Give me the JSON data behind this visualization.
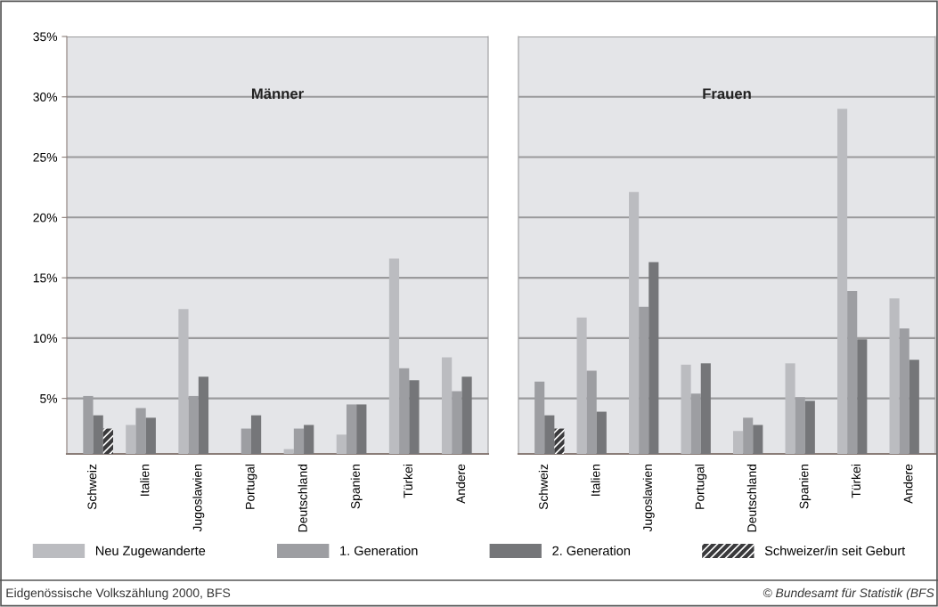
{
  "chart_data": [
    {
      "type": "bar",
      "title": "Männer",
      "categories": [
        "Schweiz",
        "Italien",
        "Jugoslawien",
        "Portugal",
        "Deutschland",
        "Spanien",
        "Türkei",
        "Andere"
      ],
      "series": [
        {
          "name": "Neu Zugewanderte",
          "color": "#bbbcc0",
          "values": [
            null,
            2.8,
            12.4,
            null,
            0.8,
            2.0,
            16.6,
            8.4
          ]
        },
        {
          "name": "1. Generation",
          "color": "#9d9ea2",
          "values": [
            5.2,
            4.2,
            5.2,
            2.5,
            2.5,
            4.5,
            7.5,
            5.6
          ]
        },
        {
          "name": "2. Generation",
          "color": "#757679",
          "values": [
            3.6,
            3.4,
            6.8,
            3.6,
            2.8,
            4.5,
            6.5,
            6.8
          ]
        },
        {
          "name": "Schweizer/in seit Geburt",
          "color": "#3a3a3c",
          "values": [
            2.5,
            null,
            null,
            null,
            null,
            null,
            null,
            null
          ]
        }
      ],
      "ylim": [
        0.4,
        35
      ],
      "yticks": [
        {
          "value": 5,
          "label": "5%"
        },
        {
          "value": 10,
          "label": "10%"
        },
        {
          "value": 15,
          "label": "15%"
        },
        {
          "value": 20,
          "label": "20%"
        },
        {
          "value": 25,
          "label": "25%"
        },
        {
          "value": 30,
          "label": "30%"
        },
        {
          "value": 35,
          "label": "35%"
        }
      ],
      "grid": "y",
      "legend": "bottom",
      "annotations": [
        "Eidgenössische Volkszählung 2000, BFS"
      ]
    },
    {
      "type": "bar",
      "title": "Frauen",
      "categories": [
        "Schweiz",
        "Italien",
        "Jugoslawien",
        "Portugal",
        "Deutschland",
        "Spanien",
        "Türkei",
        "Andere"
      ],
      "series": [
        {
          "name": "Neu Zugewanderte",
          "color": "#bbbcc0",
          "values": [
            null,
            11.7,
            22.1,
            7.8,
            2.3,
            7.9,
            29.0,
            13.3
          ]
        },
        {
          "name": "1. Generation",
          "color": "#9d9ea2",
          "values": [
            6.4,
            7.3,
            12.6,
            5.4,
            3.4,
            5.1,
            13.9,
            10.8
          ]
        },
        {
          "name": "2. Generation",
          "color": "#757679",
          "values": [
            3.6,
            3.9,
            16.3,
            7.9,
            2.8,
            4.8,
            9.9,
            8.2
          ]
        },
        {
          "name": "Schweizer/in seit Geburt",
          "color": "#3a3a3c",
          "values": [
            2.5,
            null,
            null,
            null,
            null,
            null,
            null,
            null
          ]
        }
      ],
      "ylim": [
        0.4,
        35
      ],
      "yticks": [
        {
          "value": 5,
          "label": "5%"
        },
        {
          "value": 10,
          "label": "10%"
        },
        {
          "value": 15,
          "label": "15%"
        },
        {
          "value": 20,
          "label": "20%"
        },
        {
          "value": 25,
          "label": "25%"
        },
        {
          "value": 30,
          "label": "30%"
        },
        {
          "value": 35,
          "label": "35%"
        }
      ],
      "grid": "y",
      "tick_labels": "x",
      "legend": "bottom",
      "annotations": [
        "© Bundesamt für Statistik (BFS"
      ]
    }
  ]
}
